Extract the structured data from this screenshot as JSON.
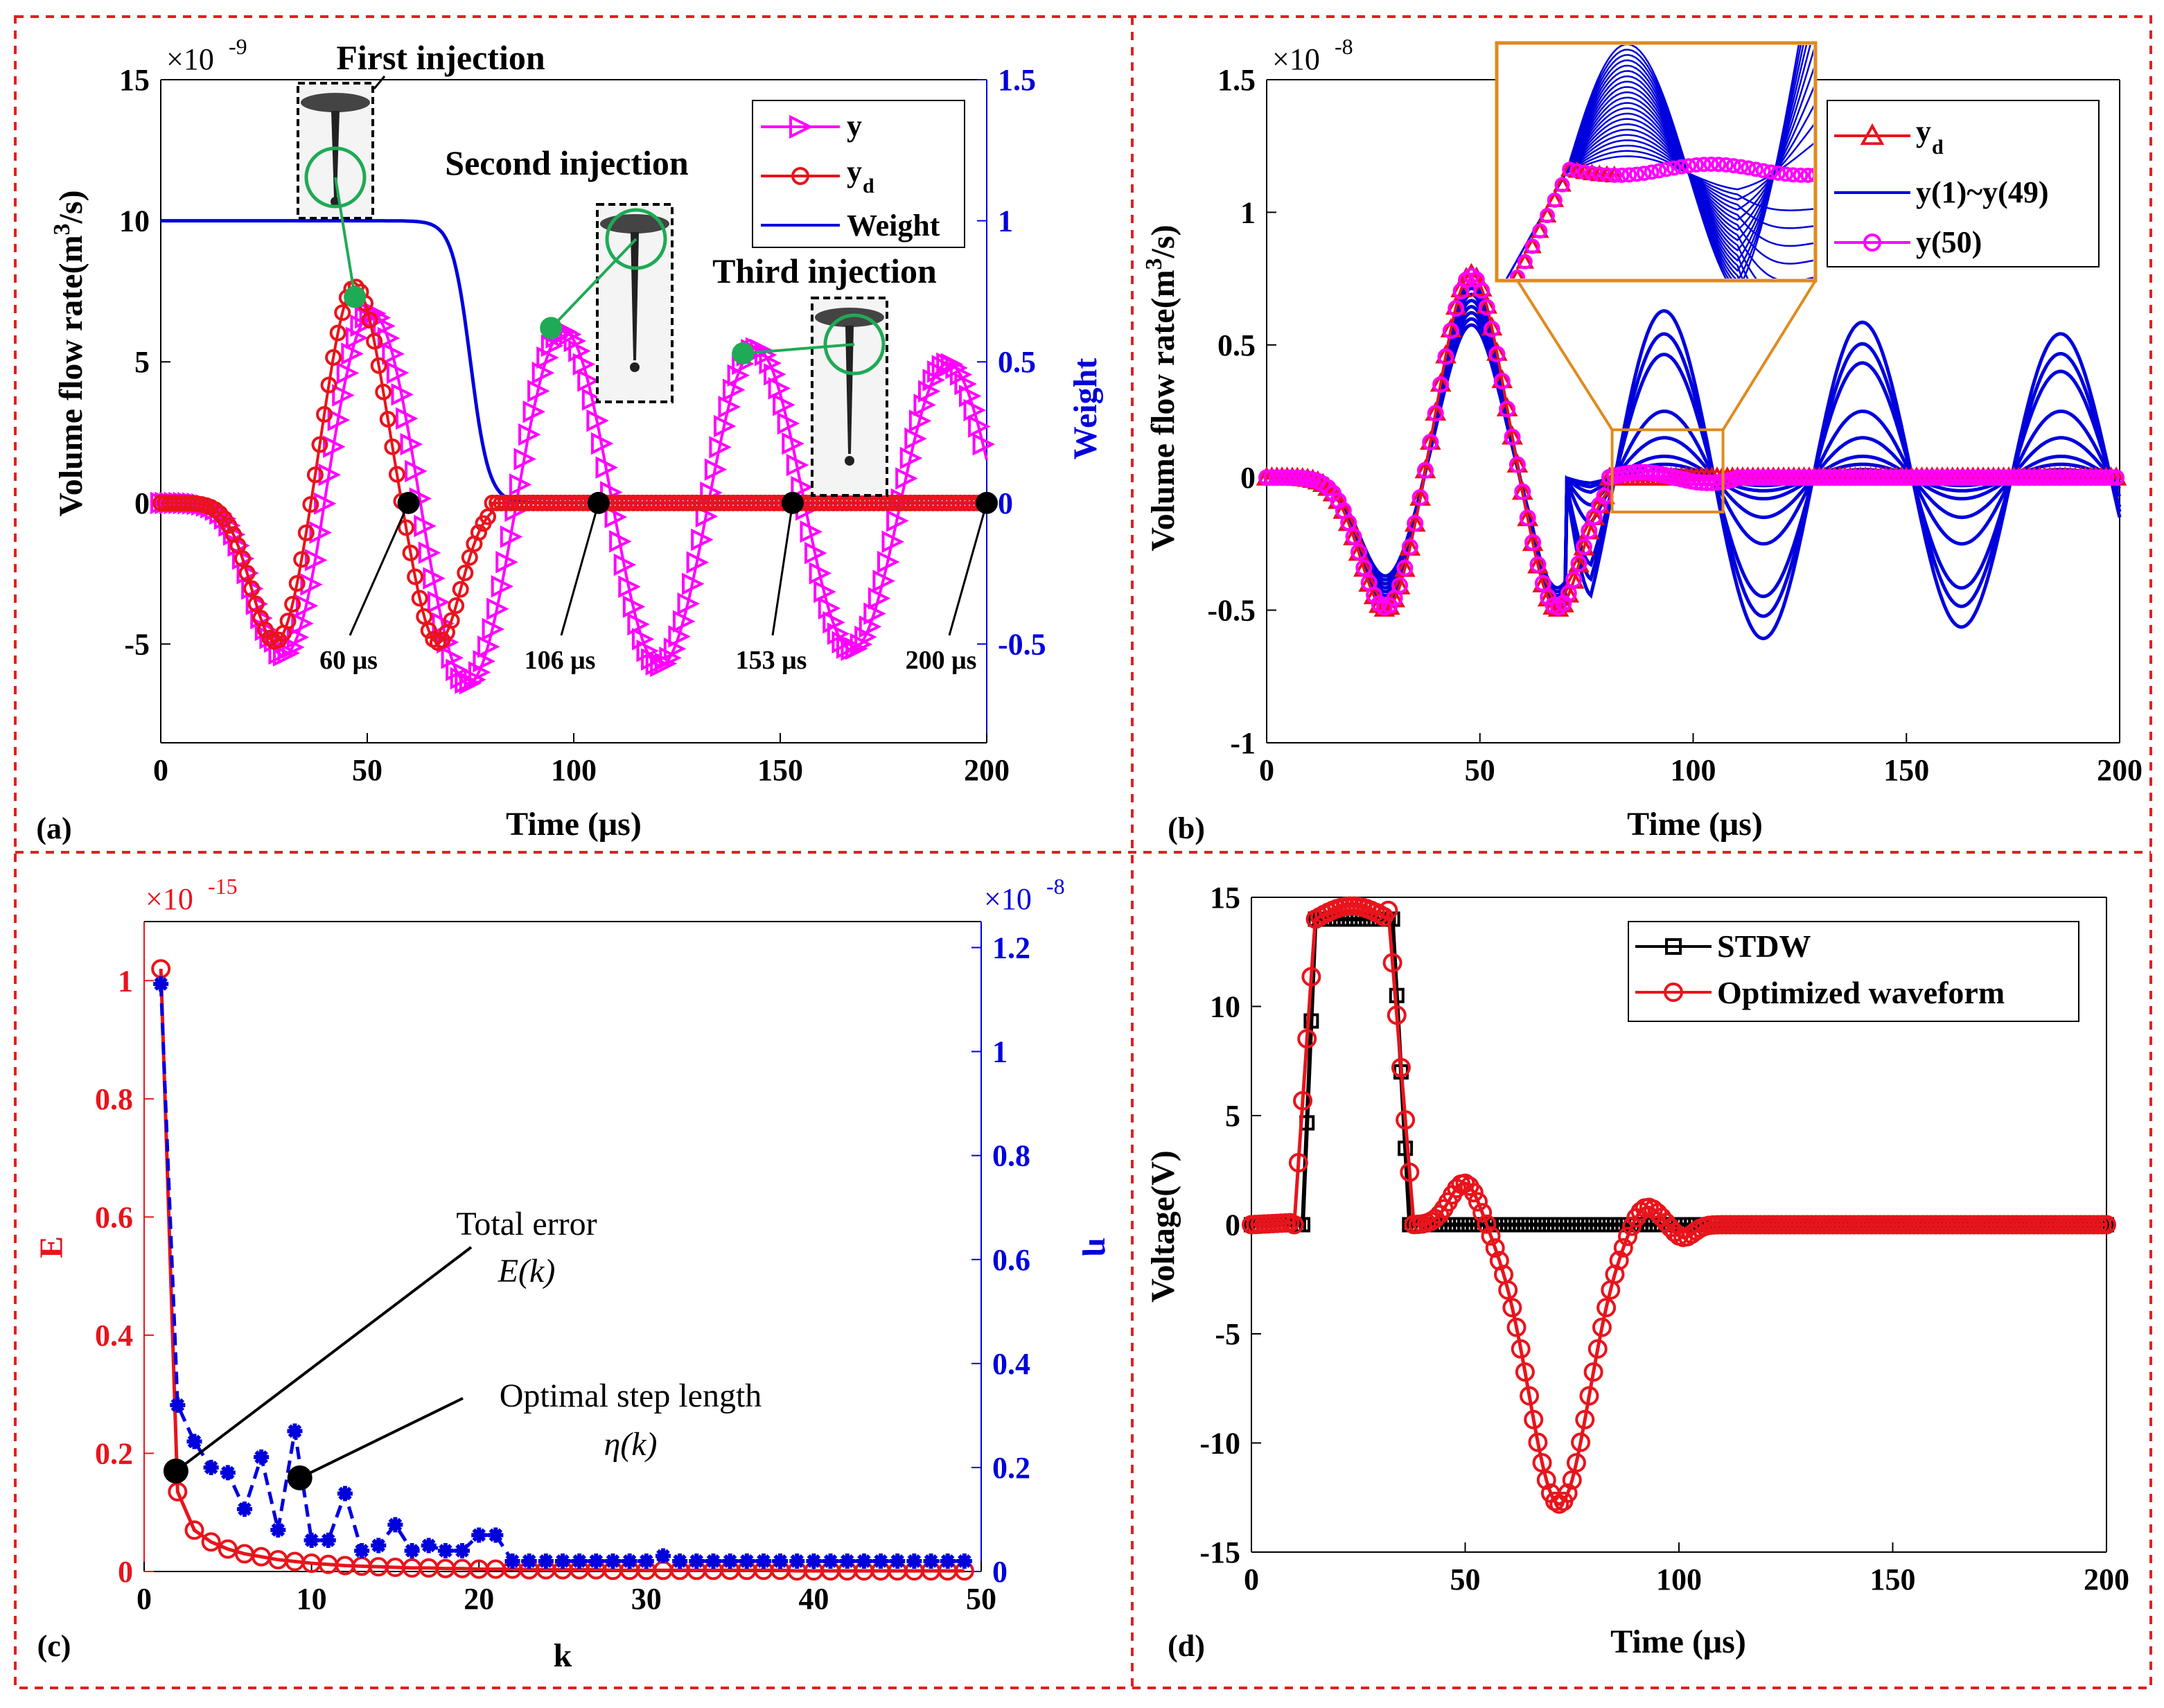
{
  "figure": {
    "description_title": "Four-panel figure: volume flow rate, ILC iterations, error convergence, driving waveform"
  },
  "colors": {
    "magenta": "#ff00ff",
    "red": "#e8141c",
    "blue": "#0000dd",
    "black": "#000000",
    "green": "#1faa55",
    "orange": "#e08a1e",
    "frame": "#e02020"
  },
  "chart_data": [
    {
      "id": "a",
      "type": "line",
      "panel_label": "(a)",
      "xlabel": "Time (μs)",
      "ylabel": "Volume flow rate(m³/s)",
      "ylabel_main": "Volume flow rate(m",
      "ylabel_sup": "3",
      "ylabel_end": "/s)",
      "y2label": "Weight",
      "exponent_base": "×10",
      "exponent_power": "-9",
      "xlim": [
        0,
        200
      ],
      "ylim": [
        -8.5,
        15
      ],
      "y2lim": [
        -0.85,
        1.5
      ],
      "xticks": [
        "0",
        "50",
        "100",
        "150",
        "200"
      ],
      "yticks": [
        "-5",
        "0",
        "5",
        "10",
        "15"
      ],
      "y2ticks": [
        "-0.5",
        "0",
        "0.5",
        "1",
        "1.5"
      ],
      "series": [
        {
          "name": "y",
          "description": "damped oscillation over 0–200 μs, peaks 7.5e-9 at ~47, -7.4e-9 at ~70, 6.8e-9 at ~94, -6.2e-9 at ~117, 5.9e-9 at ~141, -5.4e-9 at ~164, 5.0e-9 at ~187"
        },
        {
          "name": "y_d",
          "description": "single wavelet: -5e-9 at 28 μs, 7.7e-9 at 47 μs, -5e-9 at 67 μs, then 0"
        },
        {
          "name": "Weight",
          "description": "1 until ~70 μs, sigmoid drop to 0 at ~82 μs"
        }
      ],
      "legend": {
        "placement": "top-right",
        "entries": [
          "y",
          "y",
          "Weight"
        ],
        "subscript_d": "d"
      },
      "annotations": {
        "first": "First injection",
        "second": "Second injection",
        "third": "Third injection",
        "t60": "60 μs",
        "t106": "106 μs",
        "t153": "153 μs",
        "t200": "200 μs"
      }
    },
    {
      "id": "b",
      "type": "line",
      "panel_label": "(b)",
      "xlabel": "Time (μs)",
      "ylabel_main": "Volume flow rate(m",
      "ylabel_sup": "3",
      "ylabel_end": "/s)",
      "exponent_base": "×10",
      "exponent_power": "-8",
      "xlim": [
        0,
        200
      ],
      "ylim": [
        -1,
        1.5
      ],
      "xticks": [
        "0",
        "50",
        "100",
        "150",
        "200"
      ],
      "yticks": [
        "-1",
        "-0.5",
        "0",
        "0.5",
        "1",
        "1.5"
      ],
      "legend": {
        "placement": "top-right",
        "entries": [
          "y",
          "y(1)~y(49)",
          "y(50)"
        ],
        "subscript_d": "d"
      },
      "series": [
        {
          "name": "y_d",
          "description": "desired wavelet, -0.5 at 28, 0.77 at 48, -0.5 at 68, then 0"
        },
        {
          "name": "y(1)~y(49)",
          "description": "iterations, largest has residual oscillation amplitude ~0.65"
        },
        {
          "name": "y(50)",
          "description": "final iteration matching y_d"
        }
      ]
    },
    {
      "id": "c",
      "type": "line",
      "panel_label": "(c)",
      "xlabel": "k",
      "ylabel": "E",
      "y2label": "η",
      "exponent_base_left": "×10",
      "exponent_power_left": "-15",
      "exponent_base_right": "×10",
      "exponent_power_right": "-8",
      "xlim": [
        0,
        50
      ],
      "ylim": [
        0,
        1.1
      ],
      "y2lim": [
        0,
        1.25
      ],
      "xticks": [
        "0",
        "10",
        "20",
        "30",
        "40",
        "50"
      ],
      "yticks": [
        "0",
        "0.2",
        "0.4",
        "0.6",
        "0.8",
        "1"
      ],
      "y2ticks": [
        "0",
        "0.2",
        "0.4",
        "0.6",
        "0.8",
        "1",
        "1.2"
      ],
      "series": [
        {
          "name": "E(k)",
          "x": [
            1,
            2,
            3,
            4,
            5,
            6,
            7,
            8,
            9,
            10,
            11,
            12,
            13,
            14,
            15,
            16,
            17,
            18,
            19,
            20,
            21,
            22,
            23,
            24,
            25,
            26,
            27,
            28,
            29,
            30,
            31,
            32,
            33,
            34,
            35,
            36,
            37,
            38,
            39,
            40,
            41,
            42,
            43,
            44,
            45,
            46,
            47,
            48,
            49
          ],
          "values": [
            1.02,
            0.135,
            0.07,
            0.05,
            0.038,
            0.03,
            0.025,
            0.02,
            0.017,
            0.014,
            0.012,
            0.01,
            0.009,
            0.008,
            0.007,
            0.006,
            0.006,
            0.005,
            0.005,
            0.004,
            0.004,
            0.004,
            0.003,
            0.003,
            0.003,
            0.003,
            0.003,
            0.002,
            0.002,
            0.002,
            0.002,
            0.002,
            0.002,
            0.002,
            0.002,
            0.002,
            0.002,
            0.002,
            0.001,
            0.001,
            0.001,
            0.001,
            0.001,
            0.001,
            0.001,
            0.001,
            0.001,
            0.001,
            0.001
          ]
        },
        {
          "name": "η(k)",
          "x": [
            1,
            2,
            3,
            4,
            5,
            6,
            7,
            8,
            9,
            10,
            11,
            12,
            13,
            14,
            15,
            16,
            17,
            18,
            19,
            20,
            21,
            22,
            23,
            24,
            25,
            26,
            27,
            28,
            29,
            30,
            31,
            32,
            33,
            34,
            35,
            36,
            37,
            38,
            39,
            40,
            41,
            42,
            43,
            44,
            45,
            46,
            47,
            48,
            49
          ],
          "values": [
            1.13,
            0.32,
            0.25,
            0.2,
            0.19,
            0.12,
            0.22,
            0.08,
            0.27,
            0.06,
            0.06,
            0.15,
            0.04,
            0.05,
            0.09,
            0.04,
            0.05,
            0.04,
            0.04,
            0.07,
            0.07,
            0.02,
            0.02,
            0.02,
            0.02,
            0.02,
            0.02,
            0.02,
            0.02,
            0.02,
            0.03,
            0.02,
            0.02,
            0.02,
            0.02,
            0.02,
            0.02,
            0.02,
            0.02,
            0.02,
            0.02,
            0.02,
            0.02,
            0.02,
            0.02,
            0.02,
            0.02,
            0.02,
            0.02
          ]
        }
      ],
      "annotations": {
        "total_error": "Total error",
        "E_of_k": "E(k)",
        "optimal_step": "Optimal step length",
        "eta_of_k": "η(k)"
      }
    },
    {
      "id": "d",
      "type": "line",
      "panel_label": "(d)",
      "xlabel": "Time (μs)",
      "ylabel": "Voltage(V)",
      "xlim": [
        0,
        200
      ],
      "ylim": [
        -15,
        15
      ],
      "xticks": [
        "0",
        "50",
        "100",
        "150",
        "200"
      ],
      "yticks": [
        "-15",
        "-10",
        "-5",
        "0",
        "5",
        "10",
        "15"
      ],
      "legend": {
        "placement": "top-right",
        "entries": [
          "STDW",
          "Optimized waveform"
        ]
      },
      "series": [
        {
          "name": "STDW",
          "description": "trapezoid: 0 to 14 V rise 12–15 μs, hold to 33, fall to 0 at 37 μs"
        },
        {
          "name": "Optimized waveform",
          "description": "trapezoid ~14.5 V, then positive bump ~2 V at 50 μs, negative dip -12.8 V at 72 μs, small ripple ~1 V at 92 μs, then 0"
        }
      ]
    }
  ]
}
